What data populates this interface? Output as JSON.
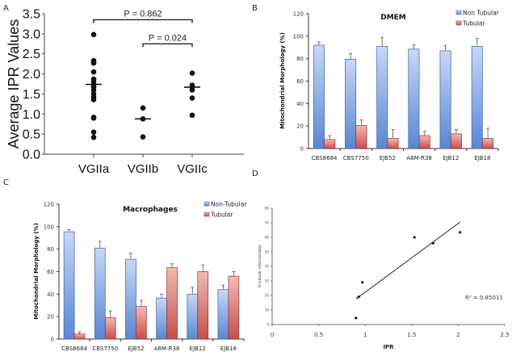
{
  "panels": {
    "A": {
      "letter": "A"
    },
    "B": {
      "letter": "B"
    },
    "C": {
      "letter": "C"
    },
    "D": {
      "letter": "D"
    }
  },
  "colors": {
    "non_tubular_light": "#c6d8f6",
    "non_tubular_dark": "#5a86d3",
    "non_tubular_border": "#3f64a8",
    "tubular_light": "#f4b9b4",
    "tubular_dark": "#c4504b",
    "tubular_border": "#8e3431"
  },
  "chart_data": [
    {
      "id": "A",
      "type": "scatter",
      "title": "",
      "xlabel": "",
      "ylabel": "Average IPR Values",
      "ylim": [
        0,
        3.5
      ],
      "yticks": [
        "0.0",
        "0.5",
        "1.0",
        "1.5",
        "2.0",
        "2.5",
        "3.0",
        "3.5"
      ],
      "categories": [
        "VGIIa",
        "VGIIb",
        "VGIIc"
      ],
      "groups": [
        {
          "name": "VGIIa",
          "values": [
            2.98,
            2.33,
            2.3,
            2.27,
            2.05,
            1.87,
            1.8,
            1.72,
            1.68,
            1.6,
            1.5,
            1.42,
            1.36,
            0.92,
            0.9,
            0.55,
            0.42
          ],
          "median": 1.74
        },
        {
          "name": "VGIIb",
          "values": [
            1.15,
            0.88,
            0.43
          ],
          "median": 0.88
        },
        {
          "name": "VGIIc",
          "values": [
            2.02,
            1.72,
            1.65,
            1.6,
            1.4,
            0.97
          ],
          "median": 1.67
        }
      ],
      "annotations": [
        {
          "text": "P = 0.862",
          "from": "VGIIa",
          "to": "VGIIc",
          "level": 3.35
        },
        {
          "text": "P = 0.024",
          "from": "VGIIb",
          "to": "VGIIc",
          "level": 2.75
        }
      ],
      "grid": false
    },
    {
      "id": "B",
      "type": "bar",
      "title": "DMEM",
      "xlabel": "",
      "ylabel": "Mitochondrial Morphology (%)",
      "ylim": [
        0,
        120
      ],
      "yticks": [
        "0",
        "20",
        "40",
        "60",
        "80",
        "100",
        "120"
      ],
      "categories": [
        "CBS8684",
        "CBS7750",
        "EJB52",
        "A6M-R38",
        "EJB12",
        "EJB18"
      ],
      "series": [
        {
          "name": "Non Tubular",
          "values": [
            92,
            79.5,
            91,
            88.5,
            87,
            91
          ],
          "errors": [
            3,
            5,
            8,
            4,
            4.5,
            7
          ]
        },
        {
          "name": "Tubular",
          "values": [
            8,
            20.5,
            9,
            11.5,
            13,
            9
          ],
          "errors": [
            3.5,
            5,
            8,
            4,
            4,
            9
          ]
        }
      ],
      "legend": "top-right",
      "grid": false
    },
    {
      "id": "C",
      "type": "bar",
      "title": "Macrophages",
      "xlabel": "",
      "ylabel": "Mitochondrial Morphology (%)",
      "ylim": [
        0,
        120
      ],
      "yticks": [
        "0",
        "20",
        "40",
        "60",
        "80",
        "100",
        "120"
      ],
      "categories": [
        "CBS8684",
        "CBS7750",
        "EJB52",
        "A6M-R38",
        "EJB12",
        "EJB18"
      ],
      "series": [
        {
          "name": "Non-Tubular",
          "values": [
            95.5,
            81,
            71,
            36.5,
            40,
            44
          ],
          "errors": [
            2,
            6,
            5.5,
            3.5,
            6,
            4
          ]
        },
        {
          "name": "Tubular",
          "values": [
            4.5,
            19,
            29,
            63.5,
            60,
            56
          ],
          "errors": [
            2,
            6,
            5.5,
            3.5,
            6,
            4
          ]
        }
      ],
      "legend": "top-right",
      "grid": false
    },
    {
      "id": "D",
      "type": "scatter",
      "title": "",
      "xlabel": "IPR",
      "ylabel": "% tubular mitochondria",
      "xlim": [
        0,
        2.5
      ],
      "ylim": [
        0,
        80
      ],
      "xticks": [
        "0",
        "0.5",
        "1",
        "1.5",
        "2",
        "2.5"
      ],
      "yticks": [
        "0",
        "10",
        "20",
        "30",
        "40",
        "50",
        "60",
        "70",
        "80"
      ],
      "points": [
        {
          "x": 0.9,
          "y": 4.5
        },
        {
          "x": 0.93,
          "y": 19
        },
        {
          "x": 0.97,
          "y": 29
        },
        {
          "x": 1.53,
          "y": 60
        },
        {
          "x": 1.73,
          "y": 56
        },
        {
          "x": 2.02,
          "y": 63.5
        }
      ],
      "trendline": {
        "x": [
          0.9,
          2.02
        ],
        "y": [
          17.5,
          70.5
        ]
      },
      "annotation": "R² = 0.85011",
      "grid": false
    }
  ]
}
